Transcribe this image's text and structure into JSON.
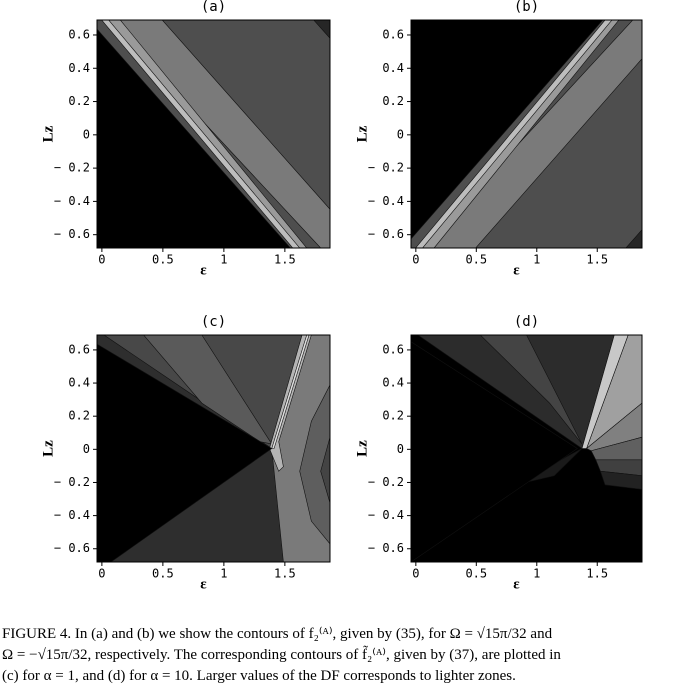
{
  "chart_data": [
    {
      "type": "contour",
      "title": "(a)",
      "xlabel": "ε",
      "ylabel": "Lz",
      "xlim": [
        -0.04,
        1.87
      ],
      "ylim": [
        -0.68,
        0.69
      ],
      "xticks": [
        0,
        0.5,
        1,
        1.5
      ],
      "yticks": [
        {
          "value": -0.6,
          "label": "− 0.6"
        },
        {
          "value": -0.4,
          "label": "− 0.4"
        },
        {
          "value": -0.2,
          "label": "− 0.2"
        },
        0,
        0.2,
        0.4,
        0.6
      ]
    },
    {
      "type": "contour",
      "title": "(b)",
      "xlabel": "ε",
      "ylabel": "Lz",
      "xlim": [
        -0.04,
        1.87
      ],
      "ylim": [
        -0.68,
        0.69
      ],
      "xticks": [
        0,
        0.5,
        1,
        1.5
      ],
      "yticks": [
        {
          "value": -0.6,
          "label": "− 0.6"
        },
        {
          "value": -0.4,
          "label": "− 0.4"
        },
        {
          "value": -0.2,
          "label": "− 0.2"
        },
        0,
        0.2,
        0.4,
        0.6
      ]
    },
    {
      "type": "contour",
      "title": "(c)",
      "xlabel": "ε",
      "ylabel": "Lz",
      "xlim": [
        -0.04,
        1.87
      ],
      "ylim": [
        -0.68,
        0.69
      ],
      "xticks": [
        0,
        0.5,
        1,
        1.5
      ],
      "yticks": [
        {
          "value": -0.6,
          "label": "− 0.6"
        },
        {
          "value": -0.4,
          "label": "− 0.4"
        },
        {
          "value": -0.2,
          "label": "− 0.2"
        },
        0,
        0.2,
        0.4,
        0.6
      ]
    },
    {
      "type": "contour",
      "title": "(d)",
      "xlabel": "ε",
      "ylabel": "Lz",
      "xlim": [
        -0.04,
        1.87
      ],
      "ylim": [
        -0.68,
        0.69
      ],
      "xticks": [
        0,
        0.5,
        1,
        1.5
      ],
      "yticks": [
        {
          "value": -0.6,
          "label": "− 0.6"
        },
        {
          "value": -0.4,
          "label": "− 0.4"
        },
        {
          "value": -0.2,
          "label": "− 0.2"
        },
        0,
        0.2,
        0.4,
        0.6
      ]
    }
  ],
  "caption": [
    "FIGURE 4. In (a) and (b) we show the contours of f₂⁽ᴬ⁾, given by (35), for Ω = √15π/32 and",
    "Ω = −√15π/32, respectively.  The corresponding contours of f̃₂⁽ᴬ⁾, given by (37), are plotted in",
    "(c) for α = 1, and (d) for α = 10. Larger values of the DF corresponds to lighter zones."
  ]
}
